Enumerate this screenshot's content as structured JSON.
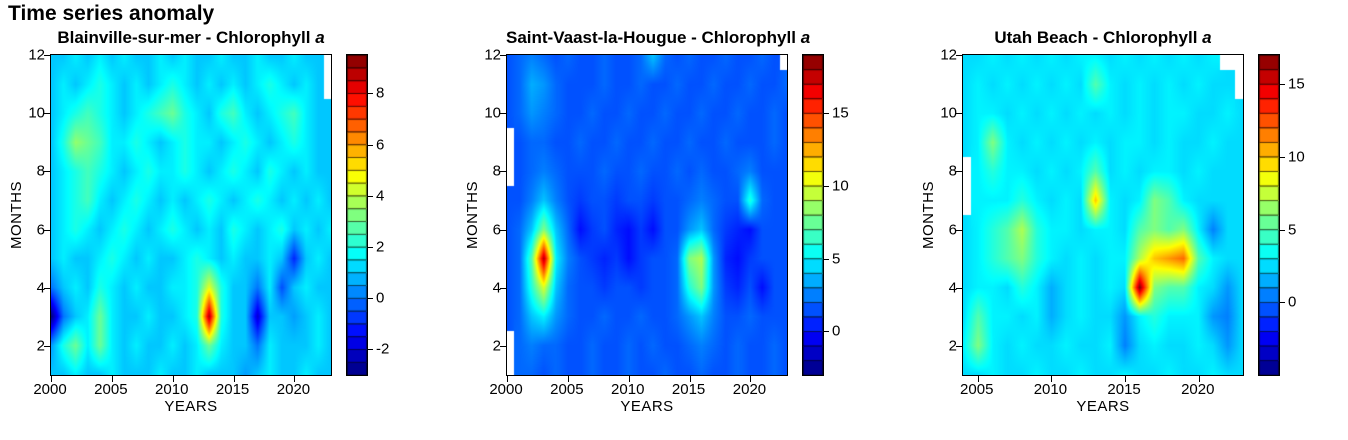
{
  "page_title": "Time series anomaly",
  "chart_data": [
    {
      "type": "heatmap",
      "site": "Blainville-sur-mer",
      "title": "Blainville-sur-mer - Chlorophyll",
      "title_italic": "a",
      "xlabel": "YEARS",
      "ylabel": "MONTHS",
      "x_range": [
        2000,
        2023
      ],
      "x_ticks": [
        2000,
        2005,
        2010,
        2015,
        2020
      ],
      "y_range": [
        1,
        12
      ],
      "y_ticks": [
        2,
        4,
        6,
        8,
        10,
        12
      ],
      "colorbar": {
        "min": -3,
        "max": 9.5,
        "step": 0.5,
        "ticks": [
          -2,
          0,
          2,
          4,
          6,
          8
        ]
      },
      "grid": [
        [
          1,
          1,
          1.5,
          1,
          1,
          1.5,
          1,
          1,
          1,
          1.5,
          1,
          1,
          1.5,
          1,
          1,
          1,
          0.5,
          1,
          1.5,
          1,
          1,
          1.5,
          1,
          1
        ],
        [
          0.5,
          2,
          3,
          1.5,
          3,
          1.5,
          1,
          1.5,
          1,
          1,
          1.5,
          1,
          1.5,
          3,
          1.5,
          1,
          1,
          0,
          1.5,
          1,
          1,
          1,
          1.5,
          1
        ],
        [
          -3,
          0,
          1,
          1.5,
          3,
          1.5,
          1,
          1,
          1.5,
          1,
          1,
          1.5,
          2,
          9,
          2,
          1,
          1,
          -2,
          1,
          1,
          0.5,
          1,
          1.5,
          1
        ],
        [
          0,
          1,
          1.5,
          1,
          2,
          1.5,
          1,
          1.5,
          1,
          1,
          1.5,
          1.5,
          2,
          4.5,
          2,
          1,
          1,
          0,
          1.5,
          -0.5,
          1,
          1.5,
          1,
          1
        ],
        [
          1,
          1.5,
          1,
          1,
          1.5,
          2,
          1.5,
          1,
          1.5,
          1,
          1,
          1.5,
          2,
          1.5,
          1,
          1.5,
          1,
          1,
          1.5,
          1,
          -1,
          1,
          1.5,
          1
        ],
        [
          1,
          1.5,
          2,
          1.5,
          1,
          1.5,
          2,
          1.5,
          1,
          1.5,
          2,
          1.5,
          1,
          1.5,
          1,
          2,
          1.5,
          1,
          1.5,
          2,
          1,
          1.5,
          1,
          1.5
        ],
        [
          1,
          1.5,
          2,
          2.5,
          1.5,
          1,
          1.5,
          2,
          1.5,
          1,
          1.5,
          1,
          1.5,
          2,
          1.5,
          1,
          1.5,
          2,
          1.5,
          1,
          1.5,
          1,
          1.5,
          1
        ],
        [
          1,
          1.5,
          2,
          2.5,
          2,
          1.5,
          1,
          1.5,
          2,
          1.5,
          1.5,
          2,
          1.5,
          1,
          1.5,
          2,
          1.5,
          1,
          2,
          1.5,
          1,
          1.5,
          1,
          1
        ],
        [
          1,
          2,
          3.5,
          3,
          2.5,
          1.5,
          1.5,
          2,
          1.5,
          1,
          1.5,
          2,
          1.5,
          1.5,
          1,
          1.5,
          2,
          1.5,
          1,
          1.5,
          2,
          1.5,
          1,
          1
        ],
        [
          1,
          1.5,
          2,
          2.5,
          2,
          1.5,
          1,
          1.5,
          2,
          2.5,
          3,
          2,
          1.5,
          1,
          2,
          2.5,
          1.5,
          1,
          1.5,
          2,
          2.5,
          1.5,
          1,
          1
        ],
        [
          1,
          1.5,
          1,
          1.5,
          2,
          1.5,
          1,
          1.5,
          1,
          1.5,
          2,
          1.5,
          1,
          1.5,
          1,
          1.5,
          1,
          1.5,
          2,
          1.5,
          1,
          1.5,
          1,
          null
        ],
        [
          1,
          1,
          1.5,
          1,
          1.5,
          1,
          1.5,
          1,
          1,
          1.5,
          1,
          1.5,
          1,
          1,
          1.5,
          1,
          1,
          1.5,
          1,
          1,
          1.5,
          1,
          1,
          null
        ]
      ]
    },
    {
      "type": "heatmap",
      "site": "Saint-Vaast-la-Hougue",
      "title": "Saint-Vaast-la-Hougue - Chlorophyll",
      "title_italic": "a",
      "xlabel": "YEARS",
      "ylabel": "MONTHS",
      "x_range": [
        2000,
        2023
      ],
      "x_ticks": [
        2000,
        2005,
        2010,
        2015,
        2020
      ],
      "y_range": [
        1,
        12
      ],
      "y_ticks": [
        2,
        4,
        6,
        8,
        10,
        12
      ],
      "colorbar": {
        "min": -3,
        "max": 19,
        "step": 1,
        "ticks": [
          0,
          5,
          10,
          15
        ]
      },
      "grid": [
        [
          null,
          2,
          2,
          1.5,
          2,
          1.5,
          1.5,
          2,
          1.5,
          1.5,
          2,
          1.5,
          1.5,
          2,
          1.5,
          1.5,
          2,
          1.5,
          1.5,
          2,
          1.5,
          1.5,
          2,
          1.5
        ],
        [
          null,
          2,
          2.5,
          2,
          2,
          1.5,
          1.5,
          2,
          1.5,
          1.5,
          2,
          1.5,
          2,
          1.5,
          1.5,
          2,
          2.5,
          2,
          1.5,
          2,
          1.5,
          1.5,
          2,
          1.5
        ],
        [
          1.5,
          2,
          4,
          5,
          3,
          2,
          1.5,
          1.5,
          2,
          1.5,
          1.5,
          2,
          1.5,
          1.5,
          2,
          3,
          4,
          2.5,
          1.5,
          1.5,
          2,
          1.5,
          1.5,
          1.5
        ],
        [
          1.5,
          2,
          6,
          10,
          4,
          2,
          1.5,
          1.5,
          1,
          1.5,
          1.5,
          1,
          1.5,
          1.5,
          2,
          6,
          8,
          3,
          1,
          0.5,
          1.5,
          0,
          1.5,
          1.5
        ],
        [
          1.5,
          2,
          7,
          18,
          5,
          2.5,
          1.5,
          1,
          0.5,
          1,
          0,
          1,
          1.5,
          1.5,
          2,
          8,
          9,
          3,
          0.5,
          0,
          1,
          1.5,
          1.5,
          1.5
        ],
        [
          1.5,
          2,
          4,
          8,
          4,
          2,
          0,
          1,
          1.5,
          0.5,
          0,
          1,
          0,
          1.5,
          1.5,
          3,
          4,
          2,
          1,
          0.5,
          0,
          1.5,
          1.5,
          1.5
        ],
        [
          1.5,
          1.5,
          2.5,
          4,
          2.5,
          1.5,
          1,
          1.5,
          1.5,
          1,
          1.5,
          1.5,
          1,
          1.5,
          1.5,
          2,
          2.5,
          2,
          1.5,
          1.5,
          6,
          2,
          1.5,
          1.5
        ],
        [
          null,
          1.5,
          2,
          2.5,
          2,
          1.5,
          1.5,
          1.5,
          2,
          1.5,
          1.5,
          2,
          1.5,
          1.5,
          2,
          1.5,
          2,
          1.5,
          1.5,
          2,
          2.5,
          1.5,
          1.5,
          1.5
        ],
        [
          null,
          1.5,
          2,
          2,
          1.5,
          1.5,
          2,
          1.5,
          1.5,
          2,
          1.5,
          1.5,
          2,
          1.5,
          1.5,
          2,
          1.5,
          1.5,
          2,
          1.5,
          1.5,
          1.5,
          2,
          1.5
        ],
        [
          1.5,
          2,
          3,
          2.5,
          2,
          1.5,
          1.5,
          2,
          1.5,
          1.5,
          2,
          1.5,
          1.5,
          2,
          1.5,
          1.5,
          2,
          1.5,
          1.5,
          2,
          1.5,
          1.5,
          2,
          1.5
        ],
        [
          1.5,
          2,
          3.5,
          3,
          2,
          1.5,
          1.5,
          1.5,
          2,
          1.5,
          1.5,
          2,
          1.5,
          1.5,
          2,
          1.5,
          1.5,
          2,
          1.5,
          1.5,
          2,
          1.5,
          1.5,
          2
        ],
        [
          1.5,
          2,
          2.5,
          2,
          1.5,
          2,
          1.5,
          1.5,
          2,
          1.5,
          1.5,
          2,
          4,
          2,
          1.5,
          2,
          1.5,
          1.5,
          2,
          1.5,
          1.5,
          2,
          1.5,
          null
        ]
      ]
    },
    {
      "type": "heatmap",
      "site": "Utah Beach",
      "title": "Utah Beach - Chlorophyll",
      "title_italic": "a",
      "xlabel": "YEARS",
      "ylabel": "MONTHS",
      "x_range": [
        2004,
        2023
      ],
      "x_ticks": [
        2005,
        2010,
        2015,
        2020
      ],
      "y_range": [
        1,
        12
      ],
      "y_ticks": [
        2,
        4,
        6,
        8,
        10,
        12
      ],
      "colorbar": {
        "min": -5,
        "max": 17,
        "step": 1,
        "ticks": [
          0,
          5,
          10,
          15
        ]
      },
      "grid": [
        [
          2.5,
          2.5,
          3,
          2.5,
          2.5,
          3,
          2.5,
          2.5,
          3,
          2.5,
          2.5,
          3,
          2.5,
          2.5,
          3,
          2.5,
          2.5,
          3,
          2.5,
          2.5
        ],
        [
          3,
          6,
          3,
          2.5,
          3,
          2.5,
          2.5,
          3,
          2.5,
          2.5,
          3,
          0.5,
          2.5,
          3,
          2.5,
          2.5,
          3,
          2.5,
          1,
          2.5
        ],
        [
          2.5,
          5,
          3,
          3,
          2.5,
          3,
          1.5,
          2.5,
          3,
          2.5,
          2.5,
          1,
          3,
          4,
          3,
          3,
          3,
          1,
          0.5,
          2.5
        ],
        [
          2.5,
          3,
          3,
          2.5,
          4,
          3,
          1.5,
          2.5,
          3,
          2.5,
          3,
          2.5,
          17,
          6,
          5,
          5,
          3,
          2.5,
          1,
          2.5
        ],
        [
          2.5,
          3,
          4,
          5,
          6,
          4,
          3,
          2.5,
          3,
          2.5,
          3,
          3,
          7,
          10,
          11,
          12,
          5,
          3,
          2.5,
          2.5
        ],
        [
          2.5,
          3,
          4,
          5,
          7,
          4,
          3,
          3,
          2.5,
          3,
          3,
          2.5,
          5,
          6,
          5,
          6,
          3,
          0.5,
          2.5,
          2.5
        ],
        [
          null,
          3,
          3,
          3,
          4,
          3,
          2.5,
          3,
          2.5,
          10,
          3,
          2.5,
          3,
          6,
          5,
          3,
          2.5,
          2.5,
          2.5,
          2.5
        ],
        [
          null,
          3,
          4,
          3,
          3,
          2.5,
          3,
          2.5,
          3,
          5,
          2.5,
          3,
          2.5,
          3,
          3,
          2.5,
          3,
          2.5,
          2.5,
          2.5
        ],
        [
          2.5,
          3,
          6,
          3,
          2.5,
          3,
          2.5,
          3,
          2.5,
          3,
          2.5,
          3,
          3,
          2.5,
          3,
          2.5,
          2.5,
          3,
          2.5,
          2.5
        ],
        [
          2.5,
          3,
          3,
          2.5,
          3,
          2.5,
          3,
          2.5,
          3,
          2.5,
          3,
          2.5,
          3,
          2.5,
          3,
          3,
          2.5,
          2.5,
          3,
          2.5
        ],
        [
          2.5,
          3,
          2.5,
          3,
          2.5,
          3,
          2.5,
          3,
          2.5,
          5,
          3,
          2.5,
          3,
          2.5,
          3,
          2.5,
          3,
          2.5,
          2.5,
          null
        ],
        [
          2.5,
          2.5,
          3,
          2.5,
          3,
          2.5,
          3,
          2.5,
          3,
          3,
          2.5,
          3,
          2.5,
          3,
          2.5,
          3,
          2.5,
          3,
          null,
          null
        ]
      ]
    }
  ]
}
